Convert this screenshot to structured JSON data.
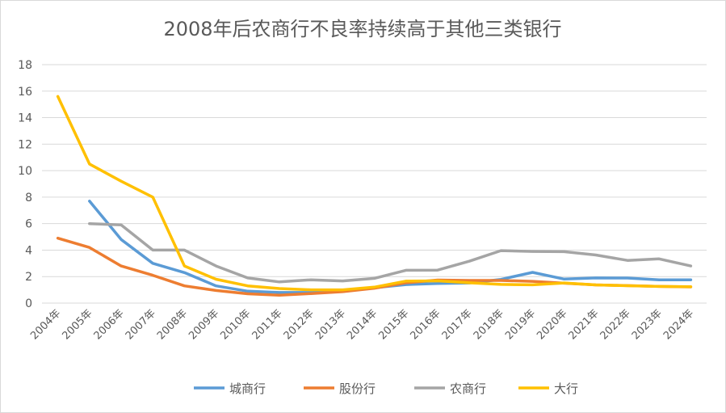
{
  "chart_data": {
    "type": "line",
    "title": "2008年后农商行不良率持续高于其他三类银行",
    "xlabel": "",
    "ylabel": "",
    "categories": [
      "2004年",
      "2005年",
      "2006年",
      "2007年",
      "2008年",
      "2009年",
      "2010年",
      "2011年",
      "2012年",
      "2013年",
      "2014年",
      "2015年",
      "2016年",
      "2017年",
      "2018年",
      "2019年",
      "2020年",
      "2021年",
      "2022年",
      "2023年",
      "2024年"
    ],
    "ylim": [
      0,
      18
    ],
    "yticks": [
      0,
      2,
      4,
      6,
      8,
      10,
      12,
      14,
      16,
      18
    ],
    "grid": true,
    "legend_position": "bottom",
    "series": [
      {
        "name": "城商行",
        "color": "#5B9BD5",
        "values": [
          null,
          7.7,
          4.8,
          3.0,
          2.3,
          1.3,
          0.9,
          0.8,
          0.8,
          0.88,
          1.16,
          1.4,
          1.48,
          1.52,
          1.79,
          2.32,
          1.81,
          1.9,
          1.89,
          1.75,
          1.76
        ]
      },
      {
        "name": "股份行",
        "color": "#ED7D31",
        "values": [
          4.9,
          4.2,
          2.8,
          2.1,
          1.3,
          0.95,
          0.7,
          0.6,
          0.72,
          0.86,
          1.12,
          1.53,
          1.74,
          1.71,
          1.71,
          1.64,
          1.5,
          1.37,
          1.32,
          1.26,
          1.22
        ]
      },
      {
        "name": "农商行",
        "color": "#A5A5A5",
        "values": [
          null,
          6.0,
          5.9,
          4.0,
          4.0,
          2.8,
          1.9,
          1.6,
          1.76,
          1.67,
          1.87,
          2.48,
          2.49,
          3.16,
          3.96,
          3.9,
          3.88,
          3.63,
          3.22,
          3.34,
          2.8
        ]
      },
      {
        "name": "大行",
        "color": "#FFC000",
        "values": [
          15.6,
          10.5,
          9.2,
          8.0,
          2.8,
          1.8,
          1.3,
          1.1,
          1.0,
          1.0,
          1.2,
          1.66,
          1.68,
          1.53,
          1.41,
          1.38,
          1.52,
          1.37,
          1.31,
          1.26,
          1.24
        ]
      }
    ]
  }
}
